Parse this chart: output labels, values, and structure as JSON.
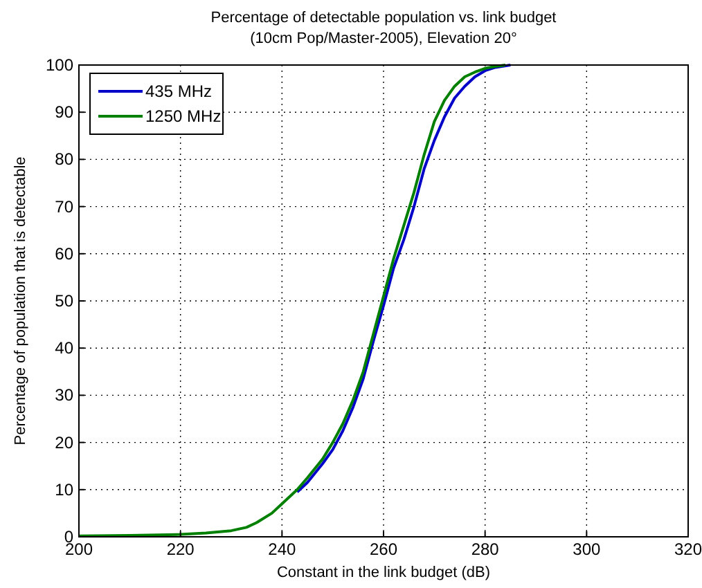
{
  "chart_data": {
    "type": "line",
    "title": "Percentage of detectable population vs. link budget",
    "subtitle": "(10cm Pop/Master-2005), Elevation 20°",
    "xlabel": "Constant in the link budget (dB)",
    "ylabel": "Percentage of population that is detectable",
    "xlim": [
      200,
      320
    ],
    "xticks": [
      200,
      220,
      240,
      260,
      280,
      300,
      320
    ],
    "ylim": [
      0,
      100
    ],
    "yticks": [
      0,
      10,
      20,
      30,
      40,
      50,
      60,
      70,
      80,
      90,
      100
    ],
    "grid": true,
    "legend": "top left",
    "line_style": "solid",
    "series": [
      {
        "name": "435 MHz",
        "color": "#0000c8",
        "x": [
          243,
          245,
          248,
          250,
          252,
          254,
          256,
          258,
          260,
          262,
          264,
          266,
          268,
          270,
          272,
          274,
          276,
          278,
          280,
          282,
          285
        ],
        "values": [
          9.5,
          11.5,
          15.5,
          18.5,
          22.5,
          27.5,
          33.5,
          41.5,
          49,
          57,
          63,
          70,
          78,
          84,
          89,
          93,
          95.5,
          97.5,
          98.8,
          99.5,
          100
        ]
      },
      {
        "name": "1250 MHz",
        "color": "#008000",
        "x": [
          200,
          210,
          220,
          225,
          230,
          233,
          235,
          238,
          240,
          243,
          245,
          248,
          250,
          252,
          254,
          256,
          258,
          260,
          262,
          264,
          266,
          268,
          270,
          272,
          274,
          276,
          278,
          280,
          282,
          284
        ],
        "values": [
          0.2,
          0.3,
          0.5,
          0.8,
          1.3,
          2,
          3,
          5,
          7,
          10,
          12.5,
          16.5,
          20,
          24,
          29,
          35,
          43,
          51,
          59,
          66,
          73,
          81,
          88,
          92.5,
          95.5,
          97.5,
          98.5,
          99.3,
          99.7,
          100
        ]
      }
    ]
  }
}
